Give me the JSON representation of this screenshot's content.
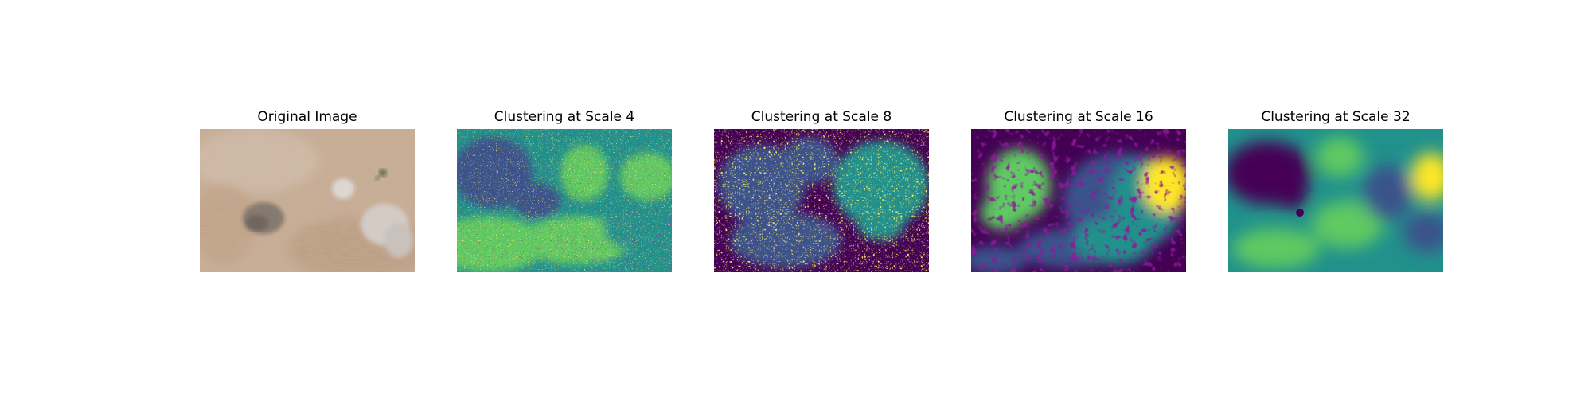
{
  "figure": {
    "panels": [
      {
        "title": "Original Image",
        "kind": "photo",
        "subject": "aerial view of dry grassland with scattered bare bushes"
      },
      {
        "title": "Clustering at Scale 4",
        "kind": "cluster_map",
        "cluster_count": 4
      },
      {
        "title": "Clustering at Scale 8",
        "kind": "cluster_map",
        "cluster_count": 4
      },
      {
        "title": "Clustering at Scale 16",
        "kind": "cluster_map",
        "cluster_count": 5
      },
      {
        "title": "Clustering at Scale 32",
        "kind": "cluster_map",
        "cluster_count": 5
      }
    ]
  },
  "colors": {
    "cluster_palette": [
      "#440154",
      "#3b528b",
      "#21918c",
      "#5ec962",
      "#fde725"
    ],
    "photo_base": "#c8ad94",
    "photo_dark": "#8f8579",
    "photo_light": "#d9d3cf"
  }
}
